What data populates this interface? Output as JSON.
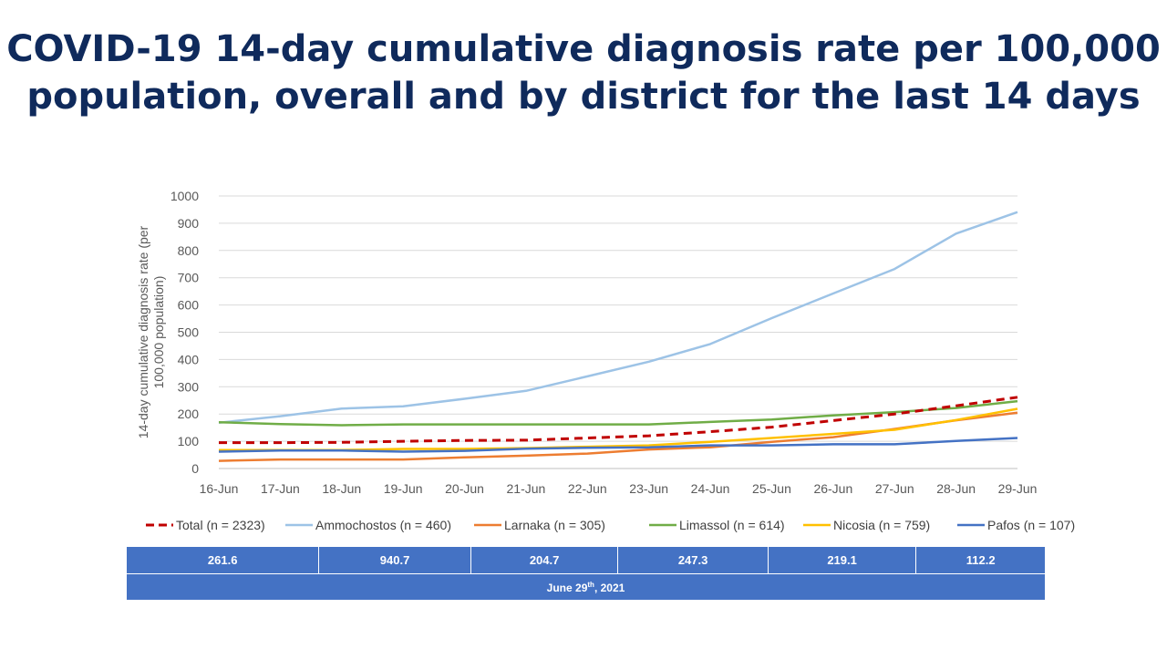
{
  "title": {
    "line1": "COVID-19 14-day cumulative diagnosis rate per 100,000",
    "line2": "population, overall and by district for the last 14 days"
  },
  "chart_data": {
    "type": "line",
    "ylabel_line1": "14-day cumulative diagnosis rate (per",
    "ylabel_line2": "100,000 population)",
    "xlabel": "",
    "ylim": [
      0,
      1000
    ],
    "yticks": [
      0,
      100,
      200,
      300,
      400,
      500,
      600,
      700,
      800,
      900,
      1000
    ],
    "grid": true,
    "legend_position": "bottom",
    "categories": [
      "16-Jun",
      "17-Jun",
      "18-Jun",
      "19-Jun",
      "20-Jun",
      "21-Jun",
      "22-Jun",
      "23-Jun",
      "24-Jun",
      "25-Jun",
      "26-Jun",
      "27-Jun",
      "28-Jun",
      "29-Jun"
    ],
    "series": [
      {
        "name": "Total (n = 2323)",
        "color": "#c00000",
        "dashed": true,
        "values": [
          95,
          95,
          96,
          100,
          103,
          104,
          112,
          120,
          135,
          152,
          176,
          200,
          230,
          261.6
        ]
      },
      {
        "name": "Ammochostos (n = 460)",
        "color": "#9dc3e6",
        "dashed": false,
        "values": [
          168,
          192,
          220,
          228,
          256,
          285,
          338,
          392,
          457,
          552,
          642,
          732,
          862,
          940.7
        ]
      },
      {
        "name": "Larnaka (n = 305)",
        "color": "#ed7d31",
        "dashed": false,
        "values": [
          28,
          33,
          33,
          33,
          41,
          47,
          55,
          70,
          78,
          98,
          115,
          145,
          177,
          204.7
        ]
      },
      {
        "name": "Limassol (n = 614)",
        "color": "#70ad47",
        "dashed": false,
        "values": [
          170,
          163,
          159,
          162,
          162,
          162,
          162,
          162,
          171,
          180,
          195,
          207,
          222,
          247.3
        ]
      },
      {
        "name": "Nicosia (n = 759)",
        "color": "#ffc000",
        "dashed": false,
        "values": [
          68,
          68,
          68,
          72,
          72,
          75,
          80,
          85,
          98,
          112,
          127,
          142,
          178,
          219.1
        ]
      },
      {
        "name": "Pafos (n = 107)",
        "color": "#4472c4",
        "dashed": false,
        "values": [
          62,
          66,
          66,
          62,
          65,
          73,
          76,
          78,
          85,
          85,
          89,
          89,
          101,
          112.2
        ]
      }
    ]
  },
  "summary": {
    "values": [
      "261.6",
      "940.7",
      "204.7",
      "247.3",
      "219.1",
      "112.2"
    ],
    "date_prefix": "June 29",
    "date_sup": "th",
    "date_suffix": ", 2021"
  }
}
